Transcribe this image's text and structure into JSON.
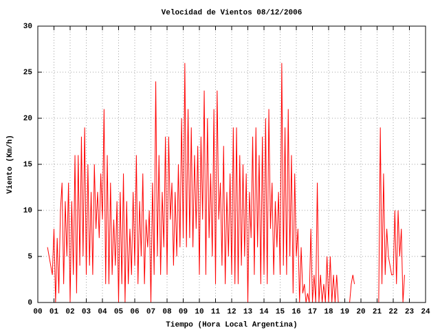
{
  "chart_data": {
    "type": "line",
    "title": "Velocidad de Vientos 08/12/2006",
    "xlabel": "Tiempo (Hora Local Argentina)",
    "ylabel": "Viento (Km/h)",
    "color": "#ff0000",
    "grid": true,
    "xlim": [
      0,
      24
    ],
    "ylim": [
      0,
      30
    ],
    "yticks": [
      0,
      5,
      10,
      15,
      20,
      25,
      30
    ],
    "xticks": [
      {
        "value": 0,
        "label": "00"
      },
      {
        "value": 1,
        "label": "01"
      },
      {
        "value": 2,
        "label": "02"
      },
      {
        "value": 3,
        "label": "03"
      },
      {
        "value": 4,
        "label": "04"
      },
      {
        "value": 5,
        "label": "05"
      },
      {
        "value": 6,
        "label": "06"
      },
      {
        "value": 7,
        "label": "07"
      },
      {
        "value": 8,
        "label": "08"
      },
      {
        "value": 9,
        "label": "09"
      },
      {
        "value": 10,
        "label": "10"
      },
      {
        "value": 11,
        "label": "11"
      },
      {
        "value": 12,
        "label": "12"
      },
      {
        "value": 13,
        "label": "13"
      },
      {
        "value": 14,
        "label": "14"
      },
      {
        "value": 15,
        "label": "15"
      },
      {
        "value": 16,
        "label": "16"
      },
      {
        "value": 17,
        "label": "17"
      },
      {
        "value": 18,
        "label": "18"
      },
      {
        "value": 19,
        "label": "19"
      },
      {
        "value": 20,
        "label": "20"
      },
      {
        "value": 21,
        "label": "21"
      },
      {
        "value": 22,
        "label": "22"
      },
      {
        "value": 23,
        "label": "23"
      },
      {
        "value": 24,
        "label": "24"
      }
    ],
    "x": [
      0.6,
      0.7,
      0.8,
      0.9,
      1.0,
      1.1,
      1.2,
      1.3,
      1.4,
      1.5,
      1.6,
      1.7,
      1.8,
      1.9,
      2.0,
      2.1,
      2.2,
      2.3,
      2.4,
      2.5,
      2.6,
      2.7,
      2.8,
      2.9,
      3.0,
      3.1,
      3.2,
      3.3,
      3.4,
      3.5,
      3.6,
      3.7,
      3.8,
      3.9,
      4.0,
      4.1,
      4.2,
      4.3,
      4.4,
      4.5,
      4.6,
      4.7,
      4.8,
      4.9,
      5.0,
      5.1,
      5.2,
      5.3,
      5.4,
      5.5,
      5.6,
      5.7,
      5.8,
      5.9,
      6.0,
      6.1,
      6.2,
      6.3,
      6.4,
      6.5,
      6.6,
      6.7,
      6.8,
      6.9,
      7.0,
      7.1,
      7.2,
      7.3,
      7.4,
      7.5,
      7.6,
      7.7,
      7.8,
      7.9,
      8.0,
      8.1,
      8.2,
      8.3,
      8.4,
      8.5,
      8.6,
      8.7,
      8.8,
      8.9,
      9.0,
      9.1,
      9.2,
      9.3,
      9.4,
      9.5,
      9.6,
      9.7,
      9.8,
      9.9,
      10.0,
      10.1,
      10.2,
      10.3,
      10.4,
      10.5,
      10.6,
      10.7,
      10.8,
      10.9,
      11.0,
      11.1,
      11.2,
      11.3,
      11.4,
      11.5,
      11.6,
      11.7,
      11.8,
      11.9,
      12.0,
      12.1,
      12.2,
      12.3,
      12.4,
      12.5,
      12.6,
      12.7,
      12.8,
      12.9,
      13.0,
      13.1,
      13.2,
      13.3,
      13.4,
      13.5,
      13.6,
      13.7,
      13.8,
      13.9,
      14.0,
      14.1,
      14.2,
      14.3,
      14.4,
      14.5,
      14.6,
      14.7,
      14.8,
      14.9,
      15.0,
      15.1,
      15.2,
      15.3,
      15.4,
      15.5,
      15.6,
      15.7,
      15.8,
      15.9,
      16.0,
      16.1,
      16.2,
      16.3,
      16.4,
      16.5,
      16.6,
      16.7,
      16.8,
      16.9,
      17.0,
      17.1,
      17.2,
      17.3,
      17.4,
      17.5,
      17.6,
      17.7,
      17.8,
      17.9,
      18.0,
      18.1,
      18.2,
      18.3,
      18.4,
      18.5,
      18.6,
      18.7,
      18.8,
      18.9,
      19.0,
      19.1,
      19.2,
      19.3,
      19.4,
      19.5,
      19.6,
      20.3,
      21.1,
      21.2,
      21.3,
      21.4,
      21.5,
      21.6,
      21.7,
      21.8,
      21.9,
      22.0,
      22.1,
      22.2,
      22.3,
      22.4,
      22.5,
      22.6,
      22.7
    ],
    "values": [
      6,
      5,
      4,
      3,
      8,
      0,
      7,
      1,
      10,
      13,
      2,
      11,
      5,
      13,
      0,
      11,
      3,
      16,
      1,
      16,
      4,
      18,
      5,
      19,
      3,
      15,
      4,
      12,
      3,
      15,
      8,
      12,
      7,
      14,
      9,
      21,
      2,
      16,
      2,
      13,
      3,
      9,
      4,
      11,
      0,
      12,
      2,
      14,
      0,
      11,
      2,
      8,
      3,
      12,
      4,
      16,
      2,
      11,
      5,
      14,
      2,
      9,
      6,
      10,
      0,
      13,
      3,
      24,
      5,
      16,
      3,
      12,
      6,
      18,
      3,
      18,
      9,
      13,
      4,
      12,
      5,
      15,
      6,
      20,
      7,
      26,
      6,
      21,
      7,
      19,
      6,
      16,
      8,
      17,
      3,
      18,
      9,
      23,
      3,
      20,
      7,
      14,
      5,
      21,
      2,
      23,
      9,
      13,
      4,
      17,
      2,
      12,
      5,
      14,
      3,
      19,
      2,
      19,
      2,
      16,
      4,
      15,
      5,
      14,
      0,
      12,
      7,
      18,
      3,
      19,
      6,
      16,
      2,
      18,
      3,
      20,
      2,
      21,
      8,
      13,
      3,
      11,
      6,
      12,
      3,
      26,
      4,
      19,
      3,
      21,
      5,
      16,
      1,
      14,
      5,
      8,
      0,
      6,
      1,
      2,
      0,
      1,
      0,
      8,
      0,
      3,
      0,
      13,
      0,
      3,
      0,
      2,
      0,
      5,
      0,
      5,
      0,
      3,
      0,
      3,
      0,
      0,
      0,
      0,
      0,
      0,
      0,
      0,
      2,
      3,
      2,
      null,
      0,
      19,
      2,
      14,
      3,
      8,
      5,
      4,
      3,
      3,
      10,
      2,
      10,
      5,
      8,
      0,
      3
    ]
  }
}
